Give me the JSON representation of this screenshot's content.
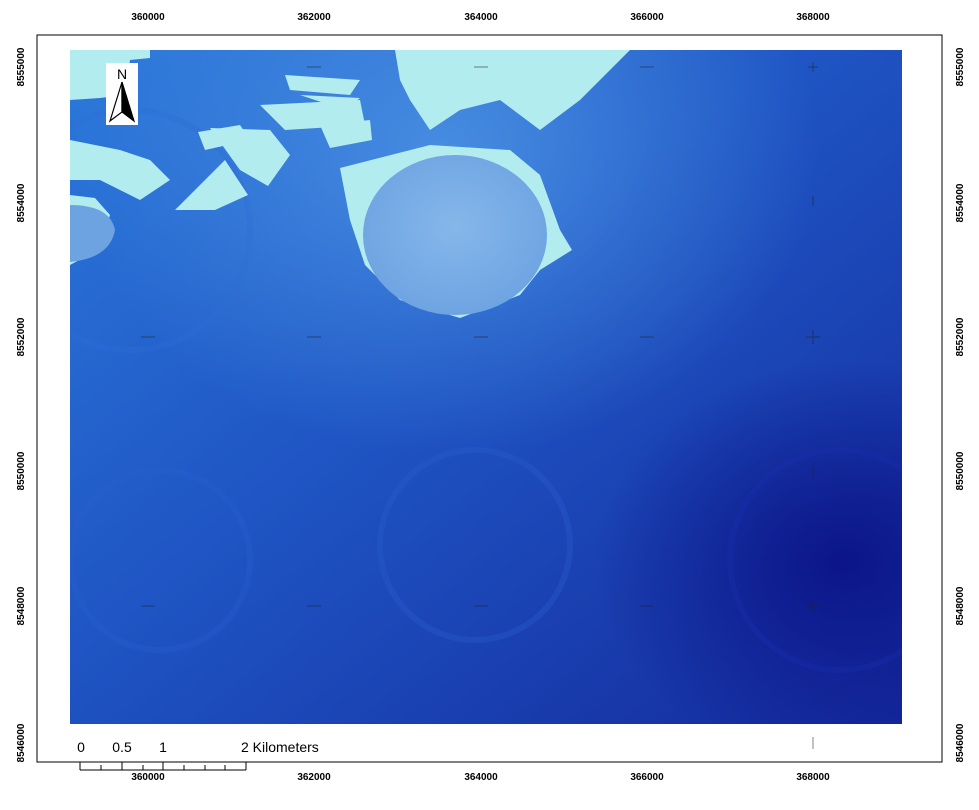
{
  "map": {
    "x_ticks": [
      "360000",
      "362000",
      "364000",
      "366000",
      "368000"
    ],
    "y_ticks": [
      "8555000",
      "8554000",
      "8552000",
      "8550000",
      "8548000",
      "8546000"
    ],
    "north_arrow_label": "N",
    "scale_bar": {
      "labels": [
        "0",
        "0.5",
        "1",
        "2 Kilometers"
      ]
    },
    "colors": {
      "frame": "#000000",
      "raster_light": "#b3ecef",
      "raster_mid": "#2a6fd4",
      "raster_dark": "#0d1e92"
    },
    "icons": [
      "north-arrow-icon"
    ]
  }
}
